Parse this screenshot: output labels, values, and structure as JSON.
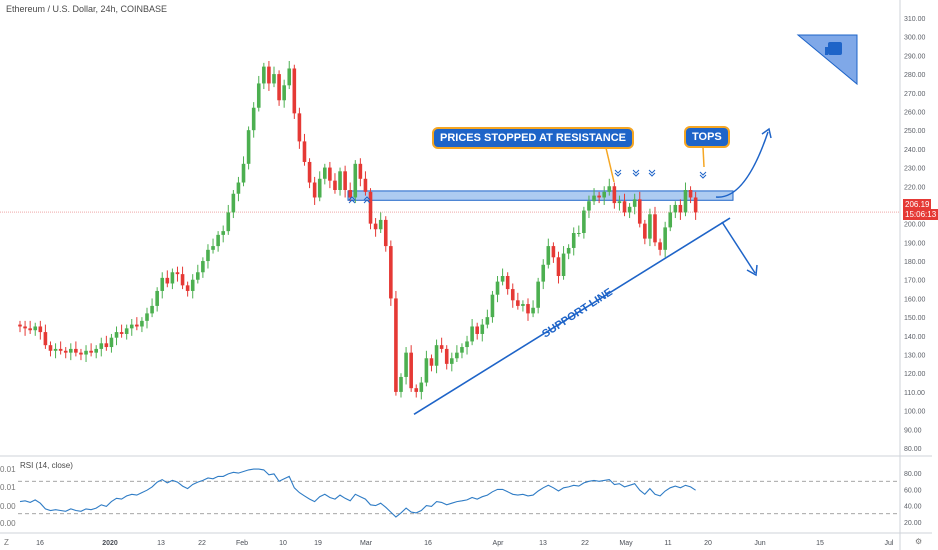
{
  "title": "Ethereum / U.S. Dollar, 24h, COINBASE",
  "rsi_title": "RSI (14, close)",
  "last_price_label": "206.19",
  "countdown_label": "15:06:13",
  "annotations": {
    "resistance": "PRICES STOPPED AT RESISTANCE",
    "tops": "TOPS",
    "support": "SUPPORT LINE"
  },
  "left_ticks": [
    "0.01",
    "0.01",
    "0.00",
    "0.00"
  ],
  "corner_left": "Z",
  "corner_right": "⚙",
  "colors": {
    "up": "#4caf50",
    "down": "#e53935",
    "accent": "#1e64c8",
    "rsi": "#2f7cc5",
    "zone": "#6aa0e6",
    "callout_border": "#f5a623",
    "price_line": "#e57373"
  },
  "chart_data": {
    "type": "candlestick",
    "symbol": "Ethereum / U.S. Dollar",
    "interval": "24h",
    "exchange": "COINBASE",
    "ylim": [
      80,
      310
    ],
    "y_ticks": [
      "310.00",
      "300.00",
      "290.00",
      "280.00",
      "270.00",
      "260.00",
      "250.00",
      "240.00",
      "230.00",
      "220.00",
      "210.00",
      "200.00",
      "190.00",
      "180.00",
      "170.00",
      "160.00",
      "150.00",
      "140.00",
      "130.00",
      "120.00",
      "110.00",
      "100.00",
      "90.00",
      "80.00"
    ],
    "x_ticks": [
      "16",
      "2020",
      "13",
      "22",
      "Feb",
      "10",
      "19",
      "Mar",
      "16",
      "Apr",
      "13",
      "22",
      "May",
      "11",
      "20",
      "Jun",
      "15",
      "Jul"
    ],
    "last_price": 206.19,
    "close": [
      145,
      144,
      143,
      145,
      142,
      135,
      132,
      133,
      132,
      131,
      133,
      131,
      130,
      132,
      131,
      133,
      136,
      134,
      139,
      142,
      141,
      144,
      146,
      145,
      148,
      152,
      156,
      164,
      171,
      168,
      174,
      173,
      167,
      164,
      170,
      174,
      180,
      186,
      188,
      194,
      196,
      206,
      216,
      222,
      232,
      250,
      262,
      275,
      284,
      275,
      280,
      266,
      274,
      283,
      259,
      244,
      233,
      222,
      214,
      224,
      230,
      223,
      218,
      228,
      218,
      214,
      232,
      224,
      217,
      200,
      197,
      202,
      188,
      160,
      110,
      118,
      131,
      112,
      110,
      115,
      128,
      124,
      135,
      133,
      125,
      128,
      131,
      134,
      137,
      145,
      141,
      146,
      150,
      162,
      169,
      172,
      165,
      159,
      156,
      157,
      152,
      155,
      169,
      178,
      188,
      182,
      172,
      184,
      187,
      195,
      195,
      207,
      212,
      215,
      214,
      217,
      220,
      211,
      212,
      206,
      209,
      213,
      200,
      192,
      205,
      190,
      186,
      198,
      206,
      210,
      206,
      218,
      214,
      206
    ],
    "rsi": {
      "name": "RSI (14, close)",
      "ylim": [
        10,
        90
      ],
      "y_ticks": [
        "80.00",
        "60.00",
        "40.00",
        "20.00"
      ],
      "upper": 70,
      "lower": 30,
      "values": [
        45,
        46,
        44,
        47,
        43,
        36,
        34,
        35,
        34,
        33,
        36,
        34,
        33,
        36,
        35,
        37,
        41,
        39,
        45,
        49,
        48,
        52,
        54,
        53,
        56,
        59,
        63,
        69,
        72,
        68,
        71,
        69,
        64,
        61,
        66,
        69,
        71,
        74,
        73,
        76,
        76,
        79,
        81,
        80,
        82,
        84,
        85,
        85,
        84,
        78,
        79,
        70,
        73,
        76,
        62,
        56,
        52,
        48,
        45,
        51,
        54,
        50,
        48,
        53,
        49,
        46,
        54,
        51,
        48,
        41,
        40,
        43,
        38,
        32,
        26,
        31,
        37,
        32,
        31,
        34,
        40,
        39,
        45,
        44,
        41,
        43,
        45,
        46,
        47,
        50,
        48,
        51,
        53,
        57,
        60,
        60,
        57,
        54,
        53,
        54,
        52,
        53,
        58,
        62,
        65,
        62,
        58,
        62,
        63,
        65,
        64,
        68,
        70,
        71,
        70,
        71,
        72,
        66,
        67,
        63,
        65,
        67,
        59,
        54,
        61,
        54,
        52,
        58,
        62,
        64,
        62,
        65,
        63,
        59
      ]
    }
  }
}
